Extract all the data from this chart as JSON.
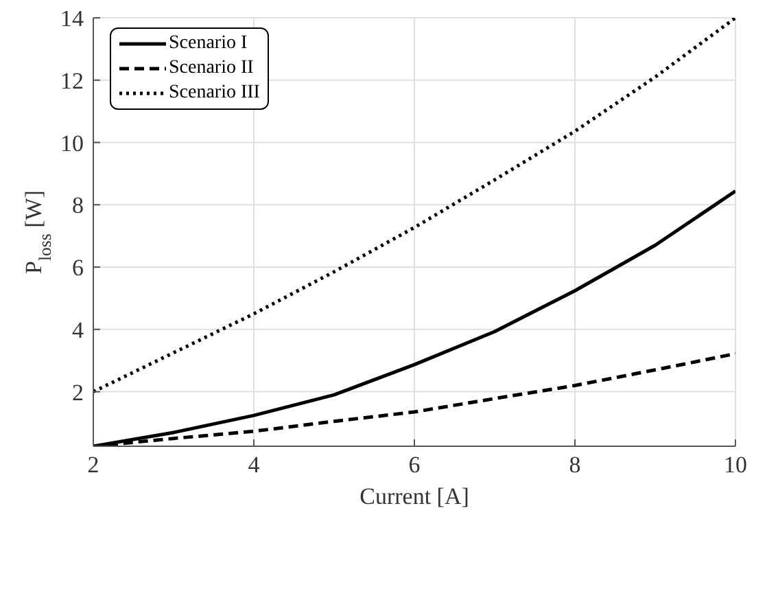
{
  "chart_data": {
    "type": "line",
    "xlabel": "Current [A]",
    "ylabel": "P$_{loss}$ [W]",
    "x": [
      2,
      3,
      4,
      5,
      6,
      7,
      8,
      9,
      10
    ],
    "series": [
      {
        "name": "Scenario I",
        "color": "#000000",
        "line_style": "solid",
        "values": [
          0.25,
          0.69,
          1.24,
          1.9,
          2.87,
          3.93,
          5.24,
          6.7,
          8.44
        ]
      },
      {
        "name": "Scenario II",
        "color": "#000000",
        "line_style": "dashed",
        "values": [
          0.25,
          0.5,
          0.73,
          1.05,
          1.35,
          1.78,
          2.2,
          2.7,
          3.22
        ]
      },
      {
        "name": "Scenario III",
        "color": "#000000",
        "line_style": "dotted",
        "values": [
          2.0,
          3.25,
          4.5,
          5.85,
          7.27,
          8.8,
          10.36,
          12.1,
          14.0
        ]
      }
    ],
    "xlim": [
      2,
      10
    ],
    "xticks": [
      2,
      4,
      6,
      8,
      10
    ],
    "ylim": [
      0.25,
      14
    ],
    "yticks": [
      2,
      4,
      6,
      8,
      10,
      12,
      14
    ],
    "grid": true,
    "legend": "top left",
    "marker": "none"
  }
}
